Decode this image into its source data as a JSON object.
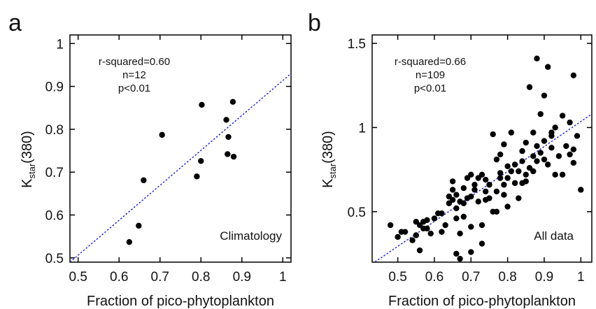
{
  "colors": {
    "point": "#000000",
    "fit_line": "#1a1ad6",
    "corner_label": "#e8192c",
    "axis": "#000000"
  },
  "chart_data": [
    {
      "type": "scatter",
      "panel_letter": "a",
      "xlabel": "Fraction of pico-phytoplankton",
      "ylabel_main": "K",
      "ylabel_sub": "star",
      "ylabel_tail": "(380)",
      "xlim": [
        0.48,
        1.02
      ],
      "ylim": [
        0.49,
        1.02
      ],
      "xticks": [
        0.5,
        0.6,
        0.7,
        0.8,
        0.9,
        1.0
      ],
      "xtick_labels": [
        "0.5",
        "0.6",
        "0.7",
        "0.8",
        "0.9",
        "1"
      ],
      "yticks": [
        0.5,
        0.6,
        0.7,
        0.8,
        0.9,
        1.0
      ],
      "ytick_labels": [
        "0.5",
        "0.6",
        "0.7",
        "0.8",
        "0.9",
        "1"
      ],
      "stats_lines": [
        "r-squared=0.60",
        "n=12",
        "p<0.01"
      ],
      "corner_label": "Climatology",
      "fit_line": {
        "style": "dotted",
        "x": [
          0.48,
          1.02
        ],
        "y": [
          0.49,
          0.93
        ]
      },
      "points": [
        {
          "x": 0.625,
          "y": 0.537
        },
        {
          "x": 0.648,
          "y": 0.575
        },
        {
          "x": 0.66,
          "y": 0.681
        },
        {
          "x": 0.705,
          "y": 0.787
        },
        {
          "x": 0.79,
          "y": 0.69
        },
        {
          "x": 0.8,
          "y": 0.726
        },
        {
          "x": 0.802,
          "y": 0.857
        },
        {
          "x": 0.862,
          "y": 0.822
        },
        {
          "x": 0.865,
          "y": 0.742
        },
        {
          "x": 0.867,
          "y": 0.782
        },
        {
          "x": 0.878,
          "y": 0.864
        },
        {
          "x": 0.88,
          "y": 0.736
        }
      ]
    },
    {
      "type": "scatter",
      "panel_letter": "b",
      "xlabel": "Fraction of pico-phytoplankton",
      "ylabel_main": "K",
      "ylabel_sub": "star",
      "ylabel_tail": "(380)",
      "xlim": [
        0.43,
        1.03
      ],
      "ylim": [
        0.2,
        1.55
      ],
      "xticks": [
        0.5,
        0.6,
        0.7,
        0.8,
        0.9,
        1.0
      ],
      "xtick_labels": [
        "0.5",
        "0.6",
        "0.7",
        "0.8",
        "0.9",
        "1"
      ],
      "yticks": [
        0.5,
        1.0,
        1.5
      ],
      "ytick_labels": [
        "0.5",
        "1",
        "1.5"
      ],
      "stats_lines": [
        "r-squared=0.66",
        "n=109",
        "p<0.01"
      ],
      "corner_label": "All data",
      "fit_line": {
        "style": "dotted",
        "x": [
          0.43,
          1.03
        ],
        "y": [
          0.19,
          1.08
        ]
      },
      "points": [
        {
          "x": 0.48,
          "y": 0.42
        },
        {
          "x": 0.5,
          "y": 0.35
        },
        {
          "x": 0.51,
          "y": 0.38
        },
        {
          "x": 0.52,
          "y": 0.38
        },
        {
          "x": 0.54,
          "y": 0.33
        },
        {
          "x": 0.55,
          "y": 0.44
        },
        {
          "x": 0.55,
          "y": 0.36
        },
        {
          "x": 0.56,
          "y": 0.42
        },
        {
          "x": 0.56,
          "y": 0.27
        },
        {
          "x": 0.57,
          "y": 0.44
        },
        {
          "x": 0.57,
          "y": 0.4
        },
        {
          "x": 0.58,
          "y": 0.4
        },
        {
          "x": 0.58,
          "y": 0.45
        },
        {
          "x": 0.59,
          "y": 0.37
        },
        {
          "x": 0.6,
          "y": 0.46
        },
        {
          "x": 0.62,
          "y": 0.49
        },
        {
          "x": 0.62,
          "y": 0.38
        },
        {
          "x": 0.63,
          "y": 0.42
        },
        {
          "x": 0.64,
          "y": 0.55
        },
        {
          "x": 0.64,
          "y": 0.59
        },
        {
          "x": 0.65,
          "y": 0.68
        },
        {
          "x": 0.65,
          "y": 0.57
        },
        {
          "x": 0.65,
          "y": 0.63
        },
        {
          "x": 0.66,
          "y": 0.52
        },
        {
          "x": 0.66,
          "y": 0.46
        },
        {
          "x": 0.66,
          "y": 0.6
        },
        {
          "x": 0.66,
          "y": 0.25
        },
        {
          "x": 0.67,
          "y": 0.56
        },
        {
          "x": 0.67,
          "y": 0.37
        },
        {
          "x": 0.67,
          "y": 0.22
        },
        {
          "x": 0.68,
          "y": 0.64
        },
        {
          "x": 0.68,
          "y": 0.47
        },
        {
          "x": 0.68,
          "y": 0.55
        },
        {
          "x": 0.69,
          "y": 0.7
        },
        {
          "x": 0.69,
          "y": 0.58
        },
        {
          "x": 0.7,
          "y": 0.72
        },
        {
          "x": 0.7,
          "y": 0.41
        },
        {
          "x": 0.7,
          "y": 0.26
        },
        {
          "x": 0.71,
          "y": 0.66
        },
        {
          "x": 0.71,
          "y": 0.63
        },
        {
          "x": 0.72,
          "y": 0.7
        },
        {
          "x": 0.72,
          "y": 0.56
        },
        {
          "x": 0.73,
          "y": 0.72
        },
        {
          "x": 0.73,
          "y": 0.42
        },
        {
          "x": 0.73,
          "y": 0.31
        },
        {
          "x": 0.74,
          "y": 0.62
        },
        {
          "x": 0.74,
          "y": 0.69
        },
        {
          "x": 0.75,
          "y": 0.66
        },
        {
          "x": 0.75,
          "y": 0.58
        },
        {
          "x": 0.76,
          "y": 0.5
        },
        {
          "x": 0.76,
          "y": 0.96
        },
        {
          "x": 0.77,
          "y": 0.62
        },
        {
          "x": 0.77,
          "y": 0.5
        },
        {
          "x": 0.77,
          "y": 0.81
        },
        {
          "x": 0.78,
          "y": 0.73
        },
        {
          "x": 0.78,
          "y": 0.7
        },
        {
          "x": 0.78,
          "y": 0.84
        },
        {
          "x": 0.79,
          "y": 0.66
        },
        {
          "x": 0.79,
          "y": 0.6
        },
        {
          "x": 0.8,
          "y": 0.77
        },
        {
          "x": 0.8,
          "y": 0.7
        },
        {
          "x": 0.8,
          "y": 0.53
        },
        {
          "x": 0.81,
          "y": 0.74
        },
        {
          "x": 0.81,
          "y": 0.97
        },
        {
          "x": 0.82,
          "y": 0.78
        },
        {
          "x": 0.82,
          "y": 0.67
        },
        {
          "x": 0.83,
          "y": 0.74
        },
        {
          "x": 0.83,
          "y": 0.58
        },
        {
          "x": 0.84,
          "y": 0.8
        },
        {
          "x": 0.84,
          "y": 0.86
        },
        {
          "x": 0.85,
          "y": 0.72
        },
        {
          "x": 0.85,
          "y": 0.68
        },
        {
          "x": 0.85,
          "y": 0.91
        },
        {
          "x": 0.86,
          "y": 0.76
        },
        {
          "x": 0.86,
          "y": 1.24
        },
        {
          "x": 0.87,
          "y": 0.83
        },
        {
          "x": 0.87,
          "y": 0.74
        },
        {
          "x": 0.87,
          "y": 0.97
        },
        {
          "x": 0.88,
          "y": 0.89
        },
        {
          "x": 0.88,
          "y": 1.41
        },
        {
          "x": 0.88,
          "y": 0.8
        },
        {
          "x": 0.89,
          "y": 0.85
        },
        {
          "x": 0.89,
          "y": 1.08
        },
        {
          "x": 0.9,
          "y": 0.92
        },
        {
          "x": 0.9,
          "y": 0.81
        },
        {
          "x": 0.9,
          "y": 1.19
        },
        {
          "x": 0.91,
          "y": 0.78
        },
        {
          "x": 0.91,
          "y": 1.36
        },
        {
          "x": 0.92,
          "y": 0.95
        },
        {
          "x": 0.92,
          "y": 0.88
        },
        {
          "x": 0.93,
          "y": 0.72
        },
        {
          "x": 0.93,
          "y": 1.0
        },
        {
          "x": 0.94,
          "y": 0.83
        },
        {
          "x": 0.95,
          "y": 0.72
        },
        {
          "x": 0.95,
          "y": 1.07
        },
        {
          "x": 0.96,
          "y": 0.89
        },
        {
          "x": 0.97,
          "y": 0.84
        },
        {
          "x": 0.97,
          "y": 1.03
        },
        {
          "x": 0.98,
          "y": 0.79
        },
        {
          "x": 0.98,
          "y": 1.31
        },
        {
          "x": 0.98,
          "y": 0.87
        },
        {
          "x": 0.99,
          "y": 0.95
        },
        {
          "x": 1.0,
          "y": 0.63
        },
        {
          "x": 0.61,
          "y": 0.49
        },
        {
          "x": 0.7,
          "y": 0.59
        },
        {
          "x": 0.74,
          "y": 0.57
        },
        {
          "x": 0.79,
          "y": 0.9
        },
        {
          "x": 0.84,
          "y": 0.67
        },
        {
          "x": 0.92,
          "y": 0.97
        }
      ]
    }
  ]
}
